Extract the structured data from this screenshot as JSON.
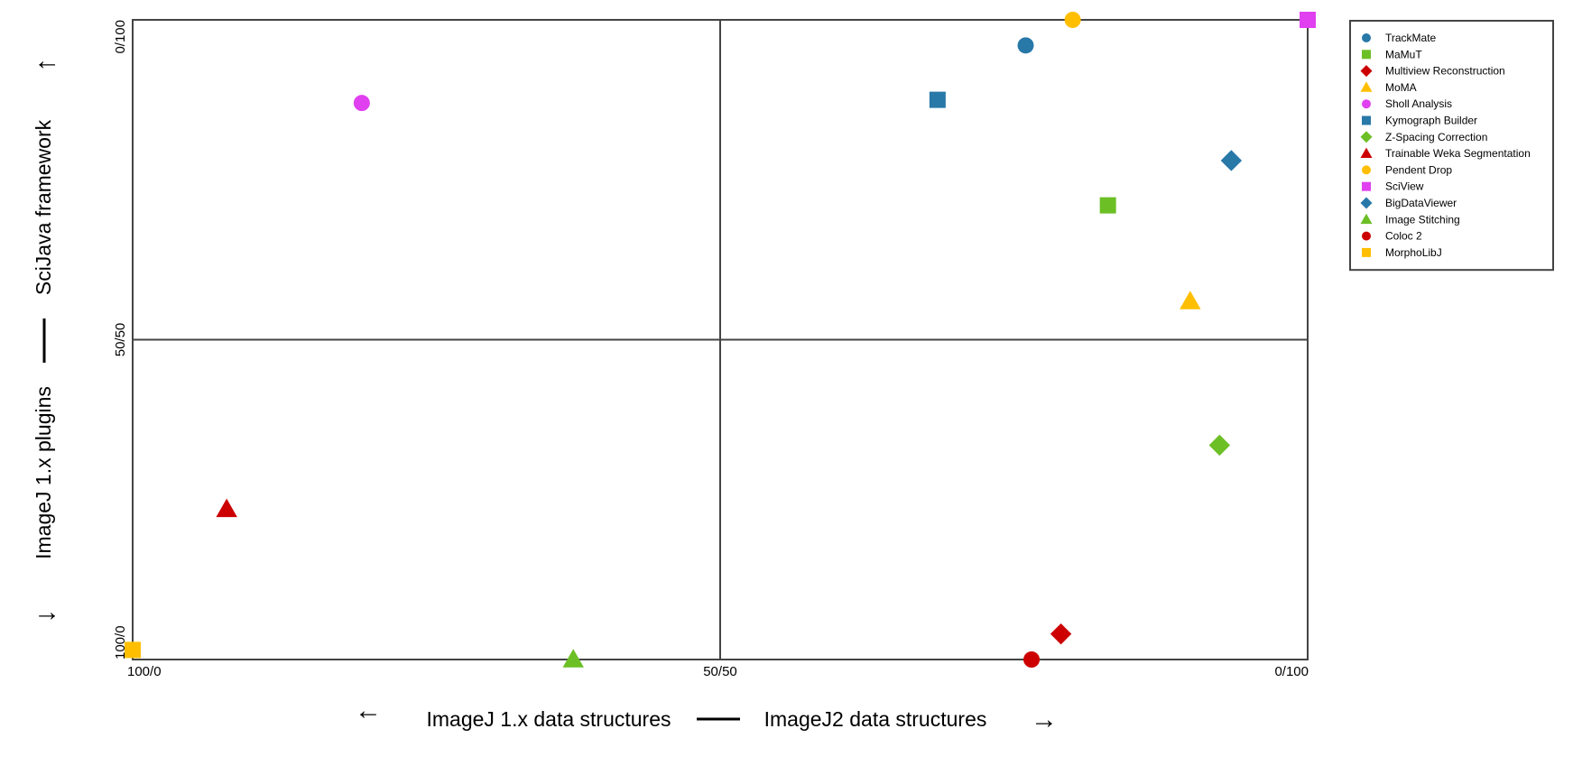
{
  "chart_data": {
    "type": "scatter",
    "title": "",
    "xlabel": {
      "left": "ImageJ 1.x data structures",
      "separator": "—",
      "right": "ImageJ2 data structures",
      "left_arrow": "←",
      "right_arrow": "→"
    },
    "ylabel": {
      "bottom": "ImageJ 1.x plugins",
      "separator": "—",
      "top": "SciJava framework",
      "down_arrow": "↓",
      "up_arrow": "↑"
    },
    "xlim": [
      0,
      100
    ],
    "ylim": [
      0,
      100
    ],
    "x_ticks": [
      {
        "value": 0,
        "label": "100/0"
      },
      {
        "value": 50,
        "label": "50/50"
      },
      {
        "value": 100,
        "label": "0/100"
      }
    ],
    "y_ticks": [
      {
        "value": 0,
        "label": "100/0"
      },
      {
        "value": 50,
        "label": "50/50"
      },
      {
        "value": 100,
        "label": "0/100"
      }
    ],
    "grid": "quadrant lines at 50",
    "legend_position": "right",
    "series": [
      {
        "name": "TrackMate",
        "marker": "circle",
        "color": "#2878a8",
        "x": 76,
        "y": 96
      },
      {
        "name": "MaMuT",
        "marker": "square",
        "color": "#6cbf25",
        "x": 83,
        "y": 71
      },
      {
        "name": "Multiview Reconstruction",
        "marker": "diamond",
        "color": "#cc0000",
        "x": 79,
        "y": 4
      },
      {
        "name": "MoMA",
        "marker": "triangle",
        "color": "#ffbf00",
        "x": 90,
        "y": 56
      },
      {
        "name": "Sholl Analysis",
        "marker": "circle",
        "color": "#e040f0",
        "x": 19.5,
        "y": 87
      },
      {
        "name": "Kymograph Builder",
        "marker": "square",
        "color": "#2878a8",
        "x": 68.5,
        "y": 87.5
      },
      {
        "name": "Z-Spacing Correction",
        "marker": "diamond",
        "color": "#6cbf25",
        "x": 92.5,
        "y": 33.5
      },
      {
        "name": "Trainable Weka Segmentation",
        "marker": "triangle",
        "color": "#cc0000",
        "x": 8,
        "y": 23.5
      },
      {
        "name": "Pendent Drop",
        "marker": "circle",
        "color": "#ffbf00",
        "x": 80,
        "y": 100
      },
      {
        "name": "SciView",
        "marker": "square",
        "color": "#e040f0",
        "x": 100,
        "y": 100
      },
      {
        "name": "BigDataViewer",
        "marker": "diamond",
        "color": "#2878a8",
        "x": 93.5,
        "y": 78
      },
      {
        "name": "Image Stitching",
        "marker": "triangle",
        "color": "#6cbf25",
        "x": 37.5,
        "y": 0
      },
      {
        "name": "Coloc 2",
        "marker": "circle",
        "color": "#cc0000",
        "x": 76.5,
        "y": 0
      },
      {
        "name": "MorphoLibJ",
        "marker": "square",
        "color": "#ffbf00",
        "x": 0,
        "y": 1.5
      }
    ]
  }
}
